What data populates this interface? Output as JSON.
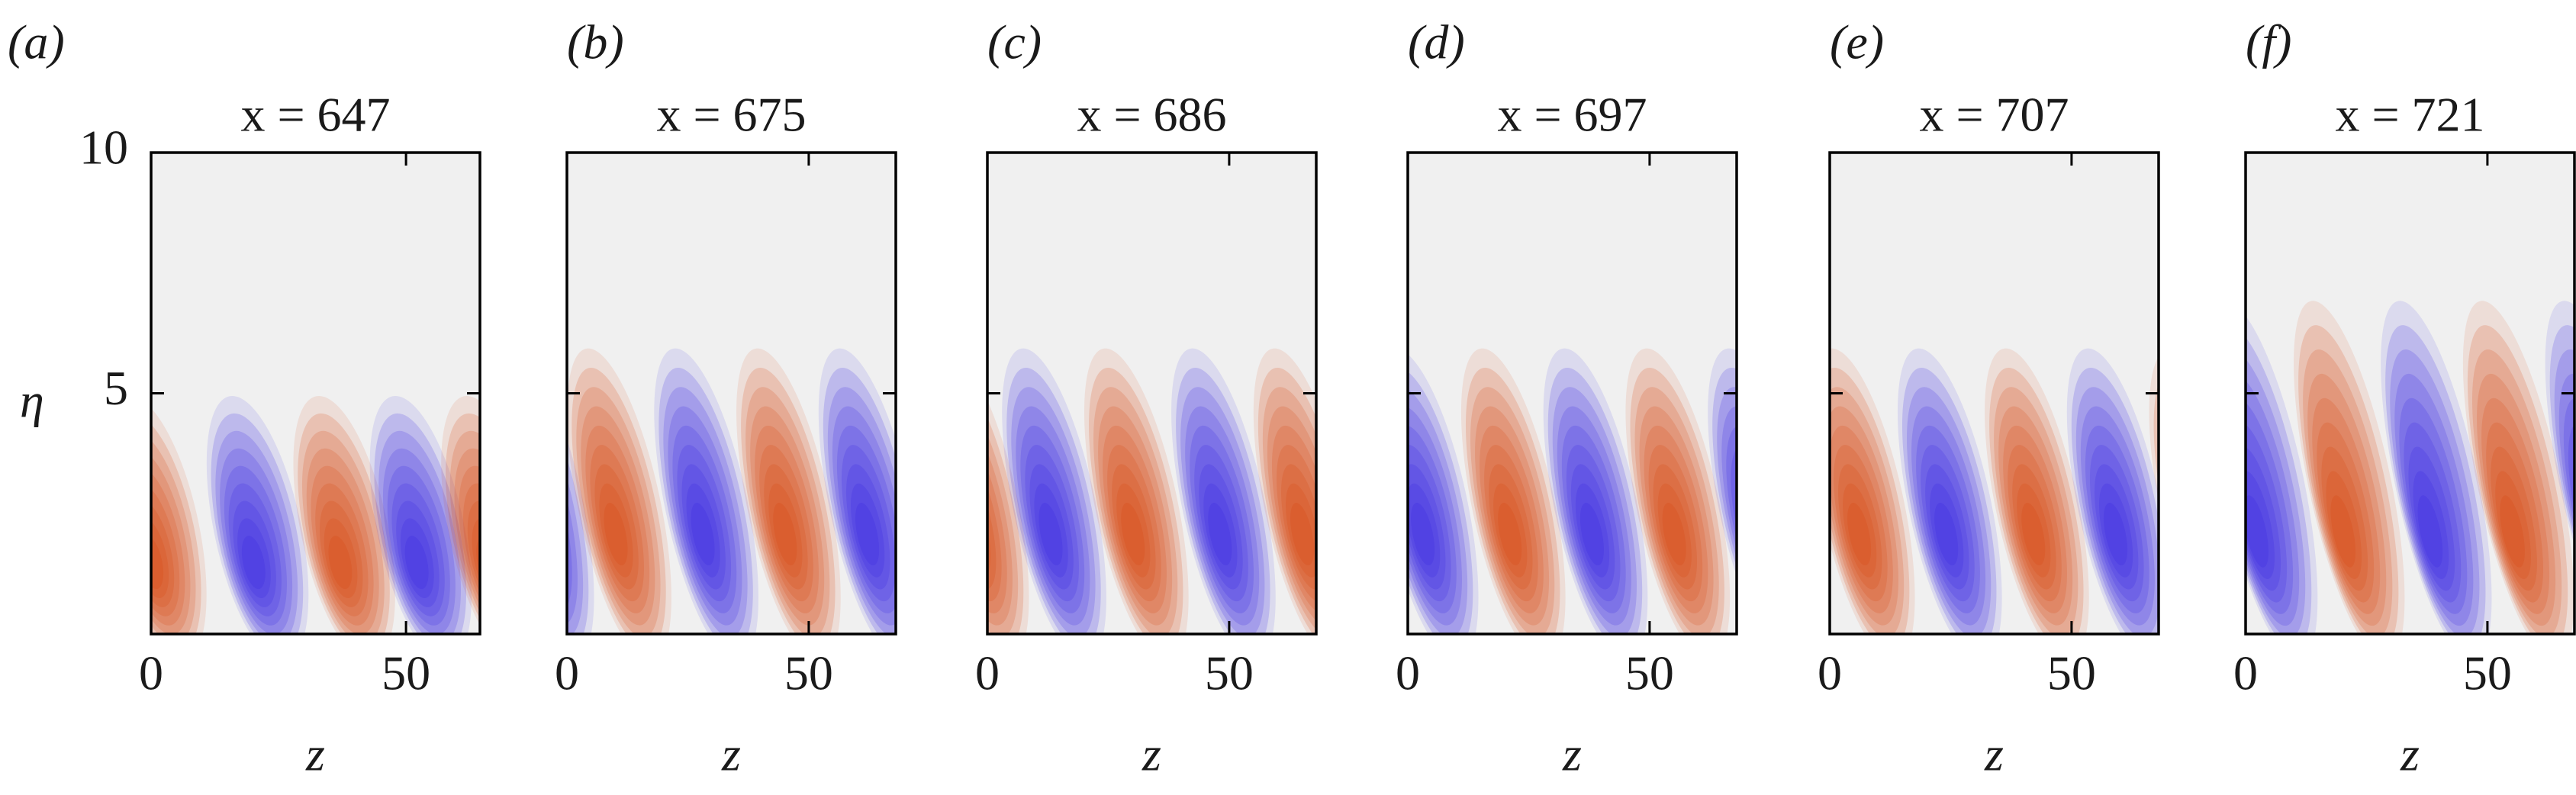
{
  "chart_data": [
    {
      "type": "contour",
      "panel_label": "(a)",
      "title": "x = 647",
      "xlabel": "z",
      "ylabel": "η",
      "xlim": [
        0,
        64.5
      ],
      "xticks": [
        0,
        50
      ],
      "ylim": [
        0,
        10
      ],
      "yticks": [
        5,
        10
      ],
      "ytick_labels": true,
      "lobe_top": 5,
      "lobe_peak": 1.4,
      "lobes": [
        {
          "z": 0,
          "sign": 1
        },
        {
          "z": 20,
          "sign": -1
        },
        {
          "z": 37,
          "sign": 1
        },
        {
          "z": 52,
          "sign": -1
        },
        {
          "z": 66,
          "sign": 1
        }
      ]
    },
    {
      "type": "contour",
      "panel_label": "(b)",
      "title": "x = 675",
      "xlabel": "z",
      "xlim": [
        0,
        68
      ],
      "xticks": [
        0,
        50
      ],
      "ylim": [
        0,
        10
      ],
      "yticks": [
        5,
        10
      ],
      "ytick_labels": false,
      "lobe_top": 6,
      "lobe_peak": 2,
      "lobes": [
        {
          "z": -6,
          "sign": -1
        },
        {
          "z": 10,
          "sign": 1
        },
        {
          "z": 28,
          "sign": -1
        },
        {
          "z": 45,
          "sign": 1
        },
        {
          "z": 62,
          "sign": -1
        }
      ]
    },
    {
      "type": "contour",
      "panel_label": "(c)",
      "title": "x = 686",
      "xlabel": "z",
      "xlim": [
        0,
        68
      ],
      "xticks": [
        0,
        50
      ],
      "ylim": [
        0,
        10
      ],
      "yticks": [
        5,
        10
      ],
      "ytick_labels": false,
      "lobe_top": 6,
      "lobe_peak": 2,
      "lobes": [
        {
          "z": -3,
          "sign": 1
        },
        {
          "z": 13,
          "sign": -1
        },
        {
          "z": 30,
          "sign": 1
        },
        {
          "z": 48,
          "sign": -1
        },
        {
          "z": 65,
          "sign": 1
        }
      ]
    },
    {
      "type": "contour",
      "panel_label": "(d)",
      "title": "x = 697",
      "xlabel": "z",
      "xlim": [
        0,
        68
      ],
      "xticks": [
        0,
        50
      ],
      "ylim": [
        0,
        10
      ],
      "yticks": [
        5,
        10
      ],
      "ytick_labels": false,
      "lobe_top": 6,
      "lobe_peak": 2,
      "lobes": [
        {
          "z": 3,
          "sign": -1
        },
        {
          "z": 21,
          "sign": 1
        },
        {
          "z": 38,
          "sign": -1
        },
        {
          "z": 55,
          "sign": 1
        },
        {
          "z": 72,
          "sign": -1
        }
      ]
    },
    {
      "type": "contour",
      "panel_label": "(e)",
      "title": "x = 707",
      "xlabel": "z",
      "xlim": [
        0,
        68
      ],
      "xticks": [
        0,
        50
      ],
      "ylim": [
        0,
        10
      ],
      "yticks": [
        5,
        10
      ],
      "ytick_labels": false,
      "lobe_top": 6,
      "lobe_peak": 2,
      "lobes": [
        {
          "z": 6,
          "sign": 1
        },
        {
          "z": 24,
          "sign": -1
        },
        {
          "z": 42,
          "sign": 1
        },
        {
          "z": 59,
          "sign": -1
        },
        {
          "z": 76,
          "sign": 1
        }
      ]
    },
    {
      "type": "contour",
      "panel_label": "(f)",
      "title": "x = 721",
      "xlabel": "z",
      "xlim": [
        0,
        68
      ],
      "xticks": [
        0,
        50
      ],
      "ylim": [
        0,
        10
      ],
      "yticks": [
        5,
        10
      ],
      "ytick_labels": false,
      "lobe_top": 7,
      "lobe_peak": 2,
      "lobes": [
        {
          "z": 2,
          "sign": -1
        },
        {
          "z": 20,
          "sign": 1
        },
        {
          "z": 38,
          "sign": -1
        },
        {
          "z": 55,
          "sign": 1
        },
        {
          "z": 72,
          "sign": -1
        }
      ]
    }
  ]
}
